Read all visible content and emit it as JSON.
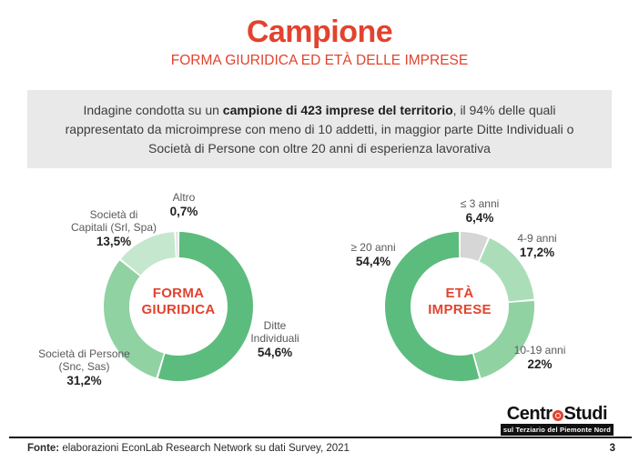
{
  "slide": {
    "title": "Campione",
    "subtitle": "FORMA GIURIDICA ED ETÀ DELLE IMPRESE",
    "intro": {
      "text_before": "Indagine condotta su un ",
      "text_bold": "campione di 423 imprese del territorio",
      "text_after": ", il 94% delle quali rappresentato da microimprese con meno di 10 addetti, in maggior parte Ditte Individuali o Società di Persone con oltre 20 anni di esperienza lavorativa"
    }
  },
  "chart_data": [
    {
      "type": "pie",
      "variant": "donut",
      "title": "FORMA\nGIURIDICA",
      "start_angle_deg": 0,
      "direction": "clockwise",
      "legend_position": "around",
      "segments": [
        {
          "label": "Ditte\nIndividuali",
          "value": 54.6,
          "display": "54,6%",
          "color": "#5cbc7d"
        },
        {
          "label": "Società di Persone\n(Snc, Sas)",
          "value": 31.2,
          "display": "31,2%",
          "color": "#90d2a2"
        },
        {
          "label": "Società di\nCapitali (Srl, Spa)",
          "value": 13.5,
          "display": "13,5%",
          "color": "#c5e7cd"
        },
        {
          "label": "Altro",
          "value": 0.7,
          "display": "0,7%",
          "color": "#d8d8d8"
        }
      ]
    },
    {
      "type": "pie",
      "variant": "donut",
      "title": "ETÀ\nIMPRESE",
      "start_angle_deg": 0,
      "direction": "clockwise",
      "legend_position": "around",
      "segments": [
        {
          "label": "≤ 3 anni",
          "value": 6.4,
          "display": "6,4%",
          "color": "#d6d6d6"
        },
        {
          "label": "4-9 anni",
          "value": 17.2,
          "display": "17,2%",
          "color": "#abdeb8"
        },
        {
          "label": "10-19 anni",
          "value": 22,
          "display": "22%",
          "color": "#90d2a2"
        },
        {
          "label": "≥ 20 anni",
          "value": 54.4,
          "display": "54,4%",
          "color": "#5cbc7d"
        }
      ]
    }
  ],
  "footer": {
    "source_bold": "Fonte:",
    "source_rest": " elaborazioni EconLab Research Network su dati Survey, 2021",
    "page_number": "3"
  },
  "logo": {
    "text_left": "Centr",
    "text_right": "Studi",
    "tagline": "sul Terziario del Piemonte Nord"
  },
  "colors": {
    "accent": "#e2432e",
    "box_bg": "#e9e9e9",
    "label_gray": "#58595b"
  }
}
